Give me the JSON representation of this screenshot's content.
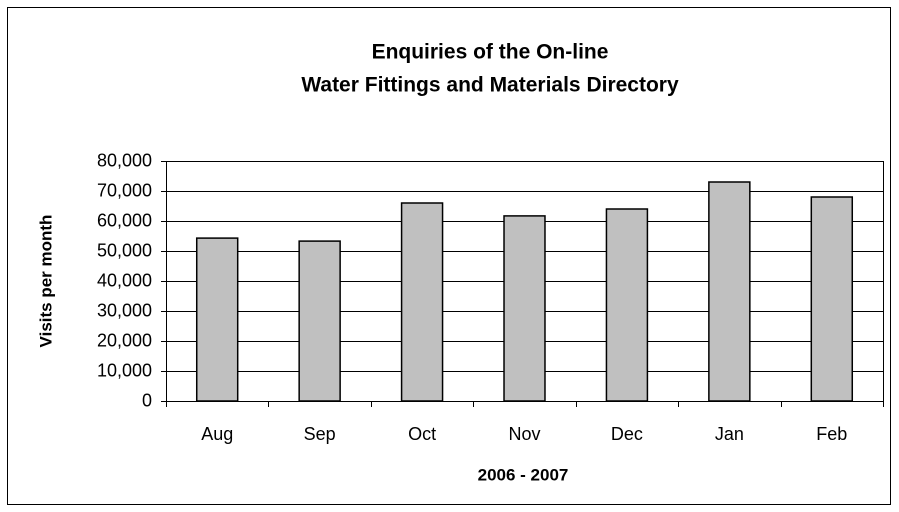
{
  "chart_data": {
    "type": "bar",
    "title": [
      "Enquiries of the On-line",
      "Water Fittings and Materials Directory"
    ],
    "x_label": "2006 - 2007",
    "y_label": "Visits per month",
    "categories": [
      "Aug",
      "Sep",
      "Oct",
      "Nov",
      "Dec",
      "Jan",
      "Feb"
    ],
    "values": [
      54300,
      53300,
      66000,
      61700,
      64000,
      73000,
      68000
    ],
    "color": "#c0c0c0",
    "ylim": [
      0,
      80000
    ],
    "yticks": [
      0,
      {
        "value": 10000,
        "label": "10,000"
      },
      {
        "value": 20000,
        "label": "20,000"
      },
      {
        "value": 30000,
        "label": "30,000"
      },
      {
        "value": 40000,
        "label": "40,000"
      },
      {
        "value": 50000,
        "label": "50,000"
      },
      {
        "value": 60000,
        "label": "60,000"
      },
      {
        "value": 70000,
        "label": "70,000"
      },
      {
        "value": 80000,
        "label": "80,000"
      }
    ],
    "grid": true
  }
}
